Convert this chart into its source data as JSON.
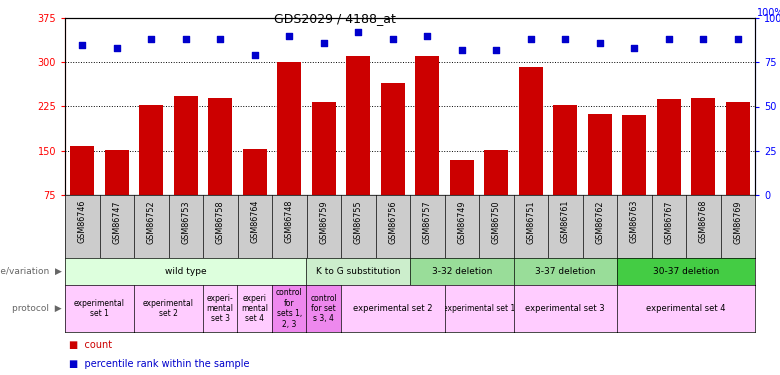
{
  "title": "GDS2029 / 4188_at",
  "samples": [
    "GSM86746",
    "GSM86747",
    "GSM86752",
    "GSM86753",
    "GSM86758",
    "GSM86764",
    "GSM86748",
    "GSM86759",
    "GSM86755",
    "GSM86756",
    "GSM86757",
    "GSM86749",
    "GSM86750",
    "GSM86751",
    "GSM86761",
    "GSM86762",
    "GSM86763",
    "GSM86767",
    "GSM86768",
    "GSM86769"
  ],
  "counts": [
    158,
    152,
    228,
    242,
    240,
    153,
    300,
    232,
    311,
    265,
    310,
    135,
    152,
    292,
    228,
    213,
    210,
    237,
    240,
    233
  ],
  "percentiles": [
    85,
    83,
    88,
    88,
    88,
    79,
    90,
    86,
    92,
    88,
    90,
    82,
    82,
    88,
    88,
    86,
    83,
    88,
    88,
    88
  ],
  "ylim_left": [
    75,
    375
  ],
  "ylim_right": [
    0,
    100
  ],
  "yticks_left": [
    75,
    150,
    225,
    300,
    375
  ],
  "yticks_right": [
    0,
    25,
    50,
    75,
    100
  ],
  "bar_color": "#cc0000",
  "dot_color": "#0000cc",
  "genotype_groups": [
    {
      "label": "wild type",
      "start": 0,
      "end": 7,
      "color": "#ddffdd"
    },
    {
      "label": "K to G substitution",
      "start": 7,
      "end": 10,
      "color": "#cceecc"
    },
    {
      "label": "3-32 deletion",
      "start": 10,
      "end": 13,
      "color": "#99dd99"
    },
    {
      "label": "3-37 deletion",
      "start": 13,
      "end": 16,
      "color": "#99dd99"
    },
    {
      "label": "30-37 deletion",
      "start": 16,
      "end": 20,
      "color": "#44cc44"
    }
  ],
  "protocol_groups": [
    {
      "label": "experimental\nset 1",
      "start": 0,
      "end": 2,
      "color": "#ffccff"
    },
    {
      "label": "experimental\nset 2",
      "start": 2,
      "end": 4,
      "color": "#ffccff"
    },
    {
      "label": "experi-\nmental\nset 3",
      "start": 4,
      "end": 5,
      "color": "#ffccff"
    },
    {
      "label": "experi\nmental\nset 4",
      "start": 5,
      "end": 6,
      "color": "#ffccff"
    },
    {
      "label": "control\nfor\nsets 1,\n2, 3",
      "start": 6,
      "end": 7,
      "color": "#ee99ee"
    },
    {
      "label": "control\nfor set\ns 3, 4",
      "start": 7,
      "end": 8,
      "color": "#ee99ee"
    },
    {
      "label": "experimental set 2",
      "start": 8,
      "end": 11,
      "color": "#ffccff"
    },
    {
      "label": "experimental set 1",
      "start": 11,
      "end": 13,
      "color": "#ffccff"
    },
    {
      "label": "experimental set 3",
      "start": 13,
      "end": 16,
      "color": "#ffccff"
    },
    {
      "label": "experimental set 4",
      "start": 16,
      "end": 20,
      "color": "#ffccff"
    }
  ],
  "legend_count_color": "#cc0000",
  "legend_pct_color": "#0000cc",
  "bg_color": "#ffffff",
  "xtick_bg": "#cccccc",
  "left_label_color": "#888888"
}
